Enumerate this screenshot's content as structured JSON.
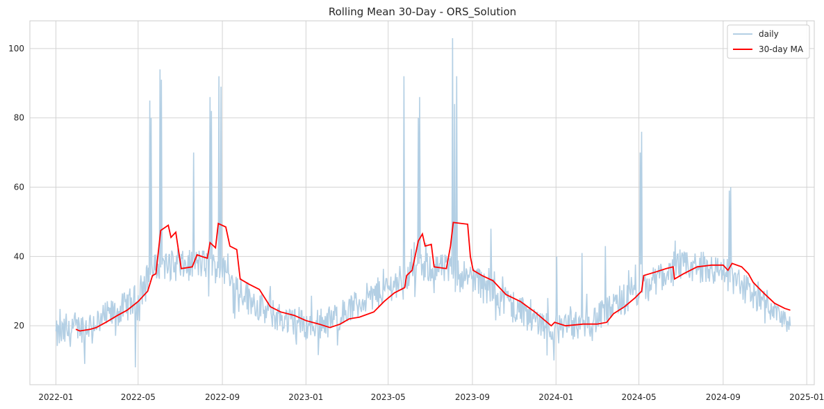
{
  "chart_data": {
    "type": "line",
    "title": "Rolling Mean 30-Day - ORS_Solution",
    "xlabel": "",
    "ylabel": "",
    "x_range": [
      "2021-11-24",
      "2025-01-12"
    ],
    "ylim": [
      3,
      108
    ],
    "grid": true,
    "legend_placement": "top-right",
    "x_ticks": [
      "2022-01",
      "2022-05",
      "2022-09",
      "2023-01",
      "2023-05",
      "2023-09",
      "2024-01",
      "2024-05",
      "2024-09",
      "2025-01"
    ],
    "y_ticks": [
      20,
      40,
      60,
      80,
      100
    ],
    "colors": {
      "daily": "#b3cfe4",
      "ma": "#ff0000",
      "grid": "#d3d3d3",
      "spine": "#cccccc"
    },
    "series": [
      {
        "name": "daily",
        "style": "noisy",
        "points": [
          [
            "2022-01-01",
            17
          ],
          [
            "2022-02-15",
            20
          ],
          [
            "2022-04-01",
            24
          ],
          [
            "2022-05-01",
            28
          ],
          [
            "2022-05-15",
            34
          ],
          [
            "2022-06-01",
            38
          ],
          [
            "2022-07-01",
            37
          ],
          [
            "2022-08-01",
            38
          ],
          [
            "2022-09-01",
            36
          ],
          [
            "2022-10-01",
            30
          ],
          [
            "2022-11-01",
            24
          ],
          [
            "2022-12-01",
            22
          ],
          [
            "2023-01-01",
            20
          ],
          [
            "2023-02-01",
            21
          ],
          [
            "2023-03-01",
            24
          ],
          [
            "2023-04-01",
            28
          ],
          [
            "2023-05-01",
            31
          ],
          [
            "2023-06-01",
            35
          ],
          [
            "2023-07-01",
            37
          ],
          [
            "2023-08-01",
            36
          ],
          [
            "2023-09-01",
            34
          ],
          [
            "2023-10-01",
            30
          ],
          [
            "2023-11-01",
            26
          ],
          [
            "2023-12-01",
            22
          ],
          [
            "2024-01-01",
            19
          ],
          [
            "2024-02-01",
            20
          ],
          [
            "2024-03-01",
            22
          ],
          [
            "2024-04-01",
            26
          ],
          [
            "2024-05-01",
            30
          ],
          [
            "2024-06-01",
            34
          ],
          [
            "2024-07-01",
            37
          ],
          [
            "2024-08-01",
            37
          ],
          [
            "2024-09-01",
            36
          ],
          [
            "2024-10-01",
            31
          ],
          [
            "2024-11-01",
            27
          ],
          [
            "2024-12-01",
            23
          ],
          [
            "2024-12-08",
            21
          ]
        ],
        "spikes": [
          [
            "2022-04-27",
            8
          ],
          [
            "2022-05-18",
            85
          ],
          [
            "2022-05-20",
            80
          ],
          [
            "2022-06-02",
            94
          ],
          [
            "2022-06-04",
            91
          ],
          [
            "2022-07-21",
            70
          ],
          [
            "2022-08-14",
            86
          ],
          [
            "2022-08-16",
            82
          ],
          [
            "2022-08-27",
            92
          ],
          [
            "2022-08-30",
            89
          ],
          [
            "2022-02-12",
            9
          ],
          [
            "2023-05-24",
            92
          ],
          [
            "2023-06-16",
            86
          ],
          [
            "2023-06-14",
            80
          ],
          [
            "2023-08-03",
            103
          ],
          [
            "2023-08-06",
            84
          ],
          [
            "2023-08-09",
            92
          ],
          [
            "2023-09-28",
            48
          ],
          [
            "2023-12-29",
            10
          ],
          [
            "2024-01-02",
            40
          ],
          [
            "2024-02-08",
            41
          ],
          [
            "2024-03-13",
            43
          ],
          [
            "2024-05-03",
            70
          ],
          [
            "2024-05-05",
            76
          ],
          [
            "2024-09-10",
            59
          ],
          [
            "2024-09-12",
            60
          ]
        ]
      },
      {
        "name": "30-day MA",
        "points": [
          [
            "2022-01-30",
            19
          ],
          [
            "2022-02-05",
            18.5
          ],
          [
            "2022-02-20",
            19
          ],
          [
            "2022-03-01",
            19.5
          ],
          [
            "2022-03-15",
            21
          ],
          [
            "2022-04-01",
            23
          ],
          [
            "2022-04-15",
            24.5
          ],
          [
            "2022-05-01",
            27
          ],
          [
            "2022-05-15",
            30
          ],
          [
            "2022-05-22",
            34.5
          ],
          [
            "2022-05-27",
            35
          ],
          [
            "2022-06-03",
            47.5
          ],
          [
            "2022-06-14",
            49
          ],
          [
            "2022-06-18",
            45.5
          ],
          [
            "2022-06-25",
            47
          ],
          [
            "2022-07-03",
            36.5
          ],
          [
            "2022-07-19",
            37
          ],
          [
            "2022-07-26",
            40.5
          ],
          [
            "2022-08-02",
            40
          ],
          [
            "2022-08-10",
            39.5
          ],
          [
            "2022-08-14",
            44
          ],
          [
            "2022-08-22",
            42.5
          ],
          [
            "2022-08-26",
            49.5
          ],
          [
            "2022-09-06",
            48.5
          ],
          [
            "2022-09-12",
            43
          ],
          [
            "2022-09-22",
            42
          ],
          [
            "2022-09-27",
            33.5
          ],
          [
            "2022-10-10",
            32
          ],
          [
            "2022-10-25",
            30.5
          ],
          [
            "2022-11-10",
            25.5
          ],
          [
            "2022-11-25",
            24
          ],
          [
            "2022-12-15",
            23
          ],
          [
            "2023-01-01",
            21.5
          ],
          [
            "2023-01-20",
            20.5
          ],
          [
            "2023-02-05",
            19.5
          ],
          [
            "2023-02-20",
            20.5
          ],
          [
            "2023-03-05",
            22
          ],
          [
            "2023-03-20",
            22.5
          ],
          [
            "2023-04-10",
            24
          ],
          [
            "2023-04-25",
            27
          ],
          [
            "2023-05-10",
            29.5
          ],
          [
            "2023-05-25",
            31
          ],
          [
            "2023-05-28",
            34.5
          ],
          [
            "2023-06-05",
            36
          ],
          [
            "2023-06-14",
            44.5
          ],
          [
            "2023-06-20",
            46.5
          ],
          [
            "2023-06-24",
            43
          ],
          [
            "2023-07-03",
            43.5
          ],
          [
            "2023-07-07",
            37
          ],
          [
            "2023-07-25",
            36.5
          ],
          [
            "2023-07-31",
            43
          ],
          [
            "2023-08-04",
            49.8
          ],
          [
            "2023-08-25",
            49.3
          ],
          [
            "2023-08-29",
            40
          ],
          [
            "2023-09-02",
            36
          ],
          [
            "2023-09-15",
            34.5
          ],
          [
            "2023-10-01",
            33
          ],
          [
            "2023-10-20",
            29
          ],
          [
            "2023-11-10",
            27
          ],
          [
            "2023-12-01",
            24
          ],
          [
            "2023-12-25",
            20
          ],
          [
            "2023-12-30",
            21
          ],
          [
            "2024-01-15",
            20
          ],
          [
            "2024-02-10",
            20.5
          ],
          [
            "2024-03-01",
            20.5
          ],
          [
            "2024-03-15",
            21
          ],
          [
            "2024-03-25",
            23.5
          ],
          [
            "2024-04-10",
            25.5
          ],
          [
            "2024-04-25",
            28
          ],
          [
            "2024-05-05",
            30
          ],
          [
            "2024-05-08",
            34.5
          ],
          [
            "2024-05-25",
            35.5
          ],
          [
            "2024-06-10",
            36.5
          ],
          [
            "2024-06-20",
            37
          ],
          [
            "2024-06-22",
            33.5
          ],
          [
            "2024-07-05",
            35
          ],
          [
            "2024-07-25",
            37
          ],
          [
            "2024-08-15",
            37.5
          ],
          [
            "2024-09-01",
            37.5
          ],
          [
            "2024-09-08",
            36
          ],
          [
            "2024-09-14",
            38
          ],
          [
            "2024-09-28",
            37
          ],
          [
            "2024-10-08",
            35
          ],
          [
            "2024-10-15",
            32.5
          ],
          [
            "2024-10-30",
            29.5
          ],
          [
            "2024-11-15",
            26.5
          ],
          [
            "2024-11-30",
            25
          ],
          [
            "2024-12-08",
            24.5
          ]
        ]
      }
    ],
    "legend": [
      {
        "label": "daily",
        "series": "daily"
      },
      {
        "label": "30-day MA",
        "series": "30-day MA"
      }
    ]
  }
}
